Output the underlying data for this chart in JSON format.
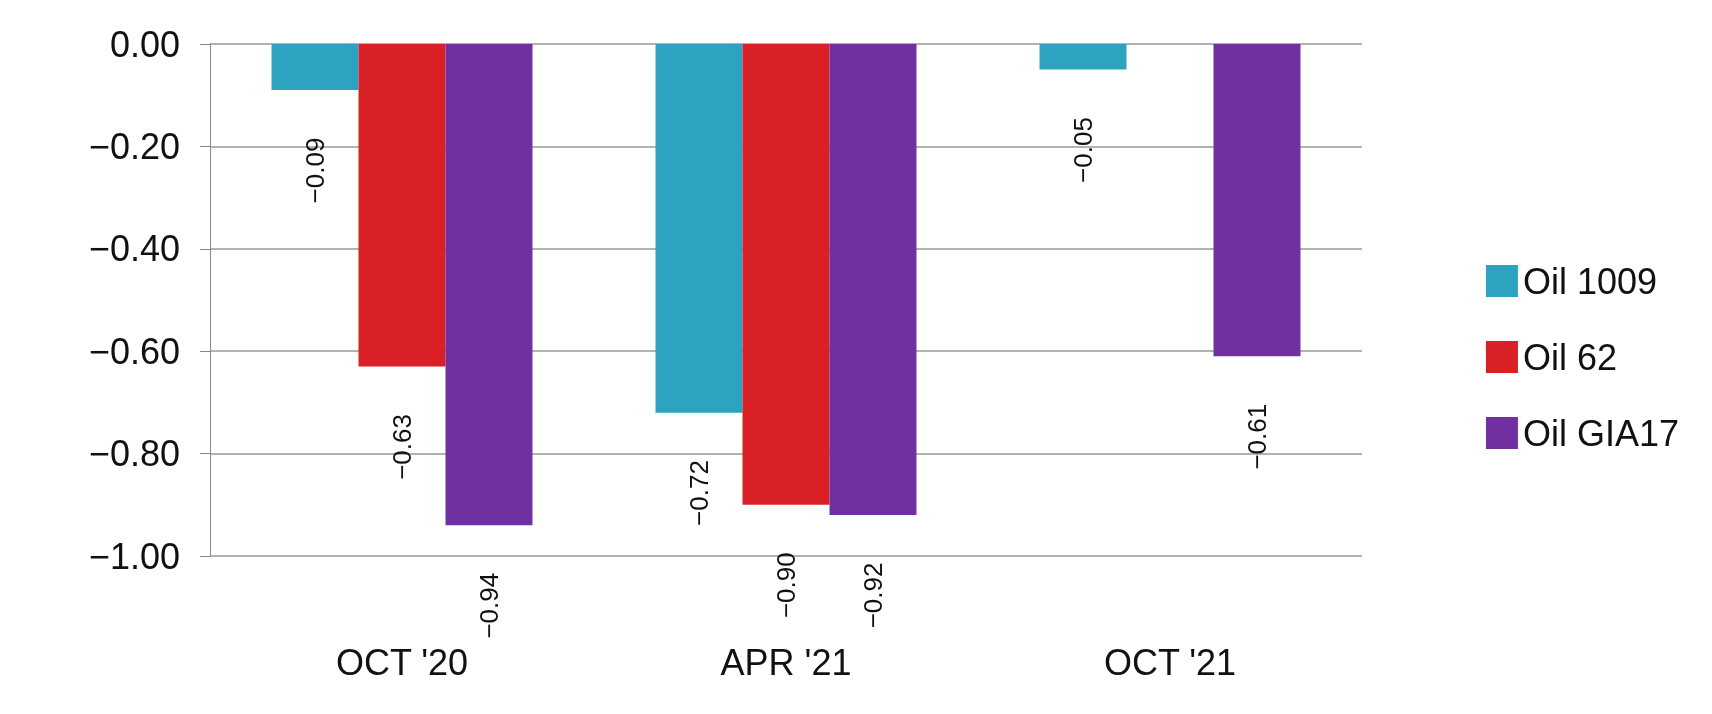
{
  "chart_data": {
    "type": "bar",
    "categories": [
      "OCT '20",
      "APR '21",
      "OCT '21"
    ],
    "series": [
      {
        "name": "Oil 1009",
        "color": "#2ea3c0",
        "values": [
          -0.09,
          -0.72,
          -0.05
        ],
        "value_labels": [
          "−0.09",
          "−0.72",
          "−0.05"
        ]
      },
      {
        "name": "Oil 62",
        "color": "#d92027",
        "values": [
          -0.63,
          -0.9,
          null
        ],
        "value_labels": [
          "−0.63",
          "−0.90",
          null
        ]
      },
      {
        "name": "Oil GIA17",
        "color": "#7030a0",
        "values": [
          -0.94,
          -0.92,
          -0.61
        ],
        "value_labels": [
          "−0.94",
          "−0.92",
          "−0.61"
        ]
      }
    ],
    "ylim": [
      -1,
      0
    ],
    "yticks": [
      {
        "value": 0,
        "label": "0.00"
      },
      {
        "value": -0.2,
        "label": "−0.20"
      },
      {
        "value": -0.4,
        "label": "−0.40"
      },
      {
        "value": -0.6,
        "label": "−0.60"
      },
      {
        "value": -0.8,
        "label": "−0.80"
      },
      {
        "value": -1,
        "label": "−1.00"
      }
    ],
    "grid": "y",
    "legend": "right"
  }
}
